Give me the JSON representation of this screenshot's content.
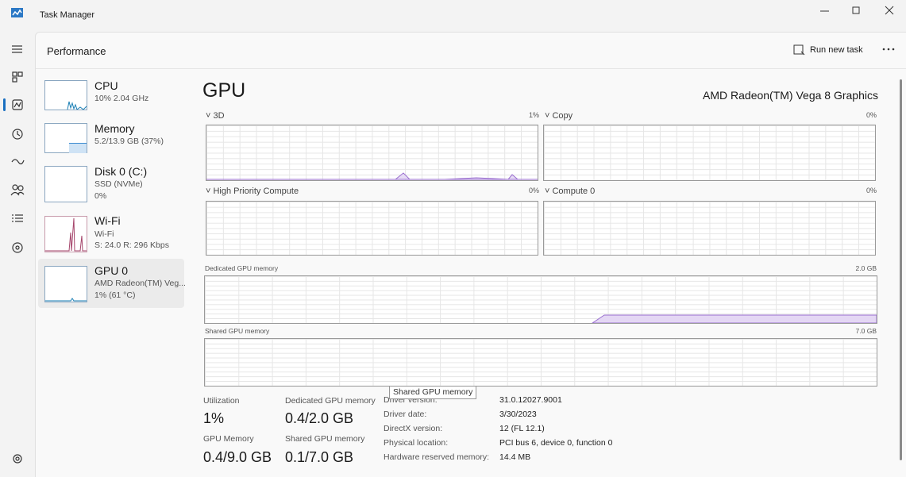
{
  "window": {
    "title": "Task Manager"
  },
  "header": {
    "title": "Performance",
    "run_new_task": "Run new task"
  },
  "sidebar": [
    {
      "name": "CPU",
      "lines": [
        "10%  2.04 GHz"
      ]
    },
    {
      "name": "Memory",
      "lines": [
        "5.2/13.9 GB (37%)"
      ]
    },
    {
      "name": "Disk 0 (C:)",
      "lines": [
        "SSD (NVMe)",
        "0%"
      ]
    },
    {
      "name": "Wi-Fi",
      "lines": [
        "Wi-Fi",
        "S: 24.0  R: 296 Kbps"
      ]
    },
    {
      "name": "GPU 0",
      "lines": [
        "AMD Radeon(TM) Veg...",
        "1% (61 °C)"
      ]
    }
  ],
  "gpu": {
    "title": "GPU",
    "model": "AMD Radeon(TM) Vega 8 Graphics",
    "engines": [
      {
        "label": "3D",
        "value": "1%"
      },
      {
        "label": "Copy",
        "value": "0%"
      },
      {
        "label": "High Priority Compute",
        "value": "0%"
      },
      {
        "label": "Compute 0",
        "value": "0%"
      }
    ],
    "memory_graphs": [
      {
        "label": "Dedicated GPU memory",
        "max": "2.0 GB"
      },
      {
        "label": "Shared GPU memory",
        "max": "7.0 GB"
      }
    ],
    "stats": [
      {
        "label": "Utilization",
        "value": "1%"
      },
      {
        "label": "Dedicated GPU memory",
        "value": "0.4/2.0 GB"
      },
      {
        "label": "GPU Memory",
        "value": "0.4/9.0 GB"
      },
      {
        "label": "Shared GPU memory",
        "value": "0.1/7.0 GB"
      }
    ],
    "details": [
      {
        "label": "Driver version:",
        "value": "31.0.12027.9001"
      },
      {
        "label": "Driver date:",
        "value": "3/30/2023"
      },
      {
        "label": "DirectX version:",
        "value": "12 (FL 12.1)"
      },
      {
        "label": "Physical location:",
        "value": "PCI bus 6, device 0, function 0"
      },
      {
        "label": "Hardware reserved memory:",
        "value": "14.4 MB"
      }
    ],
    "tooltip": "Shared GPU memory"
  }
}
